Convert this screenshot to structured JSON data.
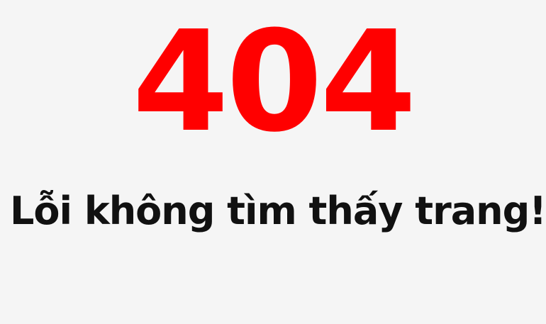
{
  "error": {
    "code": "404",
    "message": "Lỗi không tìm thấy trang!"
  },
  "colors": {
    "background": "#f5f5f5",
    "code": "#ff0000",
    "message": "#111111"
  }
}
